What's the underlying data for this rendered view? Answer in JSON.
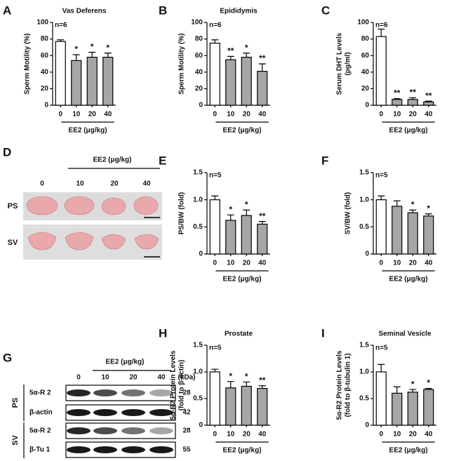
{
  "chart_data": [
    {
      "type": "bar",
      "panel": "A",
      "title": "Vas Deferens",
      "ylabel": [
        "Sperm Motility (%)"
      ],
      "annotation": "n=6",
      "categories": [
        "0",
        "10",
        "20",
        "40"
      ],
      "values": [
        77,
        54,
        58,
        58
      ],
      "errors": [
        2,
        7,
        6,
        5
      ],
      "significance": [
        null,
        "*",
        "*",
        "*"
      ],
      "colors": [
        "#ffffff",
        "#a6a6a6",
        "#a6a6a6",
        "#a6a6a6"
      ],
      "ylim": [
        0,
        100
      ],
      "yticks": [
        0,
        20,
        40,
        60,
        80,
        100
      ],
      "xlabel": "EE2 (μg/kg)"
    },
    {
      "type": "bar",
      "panel": "B",
      "title": "Epididymis",
      "ylabel": [
        "Sperm Motility (%)"
      ],
      "annotation": "n=6",
      "categories": [
        "0",
        "10",
        "20",
        "40"
      ],
      "values": [
        75,
        55,
        58,
        41
      ],
      "errors": [
        4,
        4,
        5,
        9
      ],
      "significance": [
        null,
        "**",
        "*",
        "**"
      ],
      "colors": [
        "#ffffff",
        "#a6a6a6",
        "#a6a6a6",
        "#a6a6a6"
      ],
      "ylim": [
        0,
        100
      ],
      "yticks": [
        0,
        20,
        40,
        60,
        80,
        100
      ],
      "xlabel": "EE2 (μg/kg)"
    },
    {
      "type": "bar",
      "panel": "C",
      "ylabel": [
        "Serum DHT Levels",
        "(pg/ml)"
      ],
      "annotation": "n=6",
      "categories": [
        "0",
        "10",
        "20",
        "40"
      ],
      "values": [
        83,
        7,
        7,
        4
      ],
      "errors": [
        9,
        1,
        2,
        1
      ],
      "significance": [
        null,
        "**",
        "**",
        "**"
      ],
      "colors": [
        "#ffffff",
        "#a6a6a6",
        "#a6a6a6",
        "#a6a6a6"
      ],
      "ylim": [
        0,
        100
      ],
      "yticks": [
        0,
        20,
        40,
        60,
        80,
        100
      ],
      "xlabel": "EE2 (μg/kg)"
    },
    {
      "type": "bar",
      "panel": "E",
      "ylabel": [
        "PS/BW (fold)"
      ],
      "annotation": "n=5",
      "categories": [
        "0",
        "10",
        "20",
        "40"
      ],
      "values": [
        1.0,
        0.62,
        0.71,
        0.55
      ],
      "errors": [
        0.07,
        0.1,
        0.1,
        0.05
      ],
      "significance": [
        null,
        "*",
        "*",
        "**"
      ],
      "colors": [
        "#ffffff",
        "#a6a6a6",
        "#a6a6a6",
        "#a6a6a6"
      ],
      "ylim": [
        0,
        1.5
      ],
      "yticks": [
        0,
        0.5,
        {
          "value": 1,
          "label": "1.0"
        },
        1.5
      ],
      "xlabel": "EE2 (μg/kg)"
    },
    {
      "type": "bar",
      "panel": "F",
      "ylabel": [
        "SV/BW (fold)"
      ],
      "annotation": "n=5",
      "categories": [
        "0",
        "10",
        "20",
        "40"
      ],
      "values": [
        1.0,
        0.88,
        0.76,
        0.7
      ],
      "errors": [
        0.07,
        0.1,
        0.05,
        0.04
      ],
      "significance": [
        null,
        null,
        "*",
        "*"
      ],
      "colors": [
        "#ffffff",
        "#a6a6a6",
        "#a6a6a6",
        "#a6a6a6"
      ],
      "ylim": [
        0,
        1.5
      ],
      "yticks": [
        0,
        0.5,
        {
          "value": 1,
          "label": "1.0"
        },
        1.5
      ],
      "xlabel": "EE2 (μg/kg)"
    },
    {
      "type": "bar",
      "panel": "H",
      "title": "Prostate",
      "ylabel": [
        "5α-R2 Protein Levels",
        "(fold to β-actin)"
      ],
      "annotation": "n=5",
      "categories": [
        "0",
        "10",
        "20",
        "40"
      ],
      "values": [
        1.0,
        0.7,
        0.73,
        0.69
      ],
      "errors": [
        0.05,
        0.12,
        0.08,
        0.05
      ],
      "significance": [
        null,
        "*",
        "*",
        "**"
      ],
      "colors": [
        "#ffffff",
        "#a6a6a6",
        "#a6a6a6",
        "#a6a6a6"
      ],
      "ylim": [
        0,
        1.5
      ],
      "yticks": [
        0,
        0.5,
        {
          "value": 1,
          "label": "1.0"
        },
        1.5
      ],
      "xlabel": "EE2 (μg/kg)"
    },
    {
      "type": "bar",
      "panel": "I",
      "title": "Seminal Vesicle",
      "ylabel": [
        "5α-R2 Protein Levels",
        "(fold to β-tubulin 1)"
      ],
      "annotation": "n=5",
      "categories": [
        "0",
        "10",
        "20",
        "40"
      ],
      "values": [
        1.0,
        0.6,
        0.62,
        0.67
      ],
      "errors": [
        0.14,
        0.12,
        0.05,
        0.02
      ],
      "significance": [
        null,
        null,
        "*",
        "*"
      ],
      "colors": [
        "#ffffff",
        "#a6a6a6",
        "#a6a6a6",
        "#a6a6a6"
      ],
      "ylim": [
        0,
        1.5
      ],
      "yticks": [
        0,
        0.5,
        {
          "value": 1,
          "label": "1.0"
        },
        1.5
      ],
      "xlabel": "EE2 (μg/kg)"
    }
  ],
  "photo_panel": {
    "panel": "D",
    "treatment": "EE2 (μg/kg)",
    "doses": [
      "0",
      "10",
      "20",
      "40"
    ],
    "rows": [
      "PS",
      "SV"
    ]
  },
  "blot_panel": {
    "panel": "G",
    "treatment": "EE2 (μg/kg)",
    "doses": [
      "0",
      "10",
      "20",
      "40"
    ],
    "unit": "(kDa)",
    "groups": [
      {
        "name": "PS",
        "rows": [
          {
            "label": "5α-R 2",
            "kda": 28
          },
          {
            "label": "β-actin",
            "kda": 42
          }
        ]
      },
      {
        "name": "SV",
        "rows": [
          {
            "label": "5α-R 2",
            "kda": 28
          },
          {
            "label": "β-Tu 1",
            "kda": 55
          }
        ]
      }
    ]
  }
}
